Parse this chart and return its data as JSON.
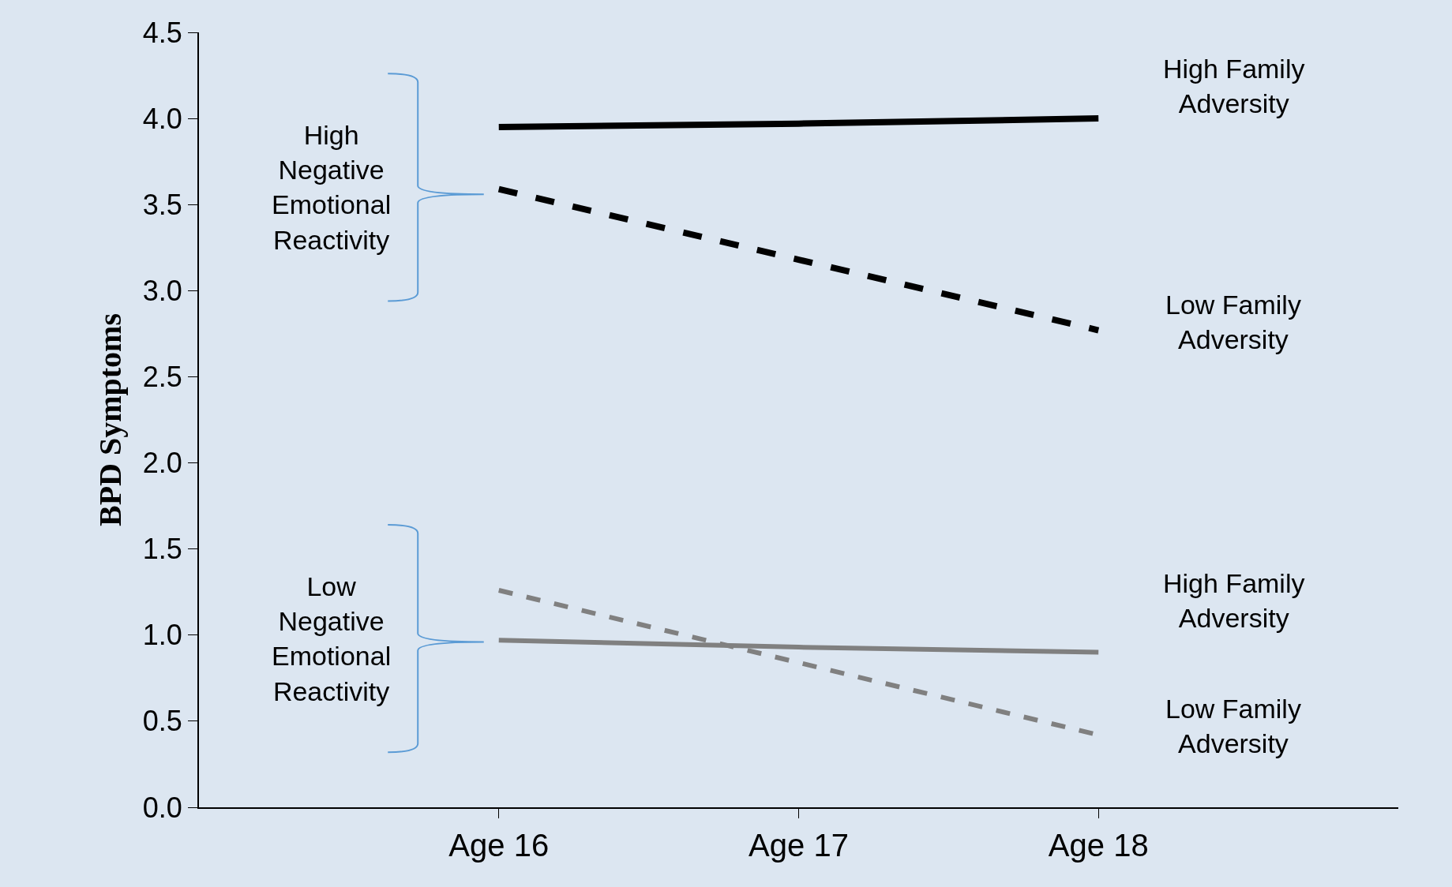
{
  "chart_data": {
    "type": "line",
    "ylabel": "BPD Symptoms",
    "categories": [
      "Age 16",
      "Age 17",
      "Age 18"
    ],
    "series": [
      {
        "name": "High Family\nAdversity",
        "color": "#000000",
        "line_style": "solid",
        "values": [
          3.95,
          3.97,
          4.0
        ]
      },
      {
        "name": "Low Family\nAdversity",
        "color": "#000000",
        "line_style": "dashed",
        "values": [
          3.59,
          3.18,
          2.77
        ]
      },
      {
        "name": "High Family\nAdversity",
        "color": "#808080",
        "line_style": "solid",
        "values": [
          0.97,
          0.93,
          0.9
        ]
      },
      {
        "name": "Low Family\nAdversity",
        "color": "#808080",
        "line_style": "dashed",
        "values": [
          1.26,
          0.84,
          0.42
        ]
      }
    ],
    "ylim": [
      0,
      4.5
    ],
    "yticks": [
      {
        "value": 0,
        "label": "0.0"
      },
      {
        "value": 0.5,
        "label": "0.5"
      },
      {
        "value": 1,
        "label": "1.0"
      },
      {
        "value": 1.5,
        "label": "1.5"
      },
      {
        "value": 2,
        "label": "2.0"
      },
      {
        "value": 2.5,
        "label": "2.5"
      },
      {
        "value": 3,
        "label": "3.0"
      },
      {
        "value": 3.5,
        "label": "3.5"
      },
      {
        "value": 4,
        "label": "4.0"
      },
      {
        "value": 4.5,
        "label": "4.5"
      }
    ],
    "annotations": [
      "High\nNegative\nEmotional\nReactivity",
      "Low\nNegative\nEmotional\nReactivity"
    ],
    "grid": false,
    "legend": false,
    "marker": "none"
  }
}
